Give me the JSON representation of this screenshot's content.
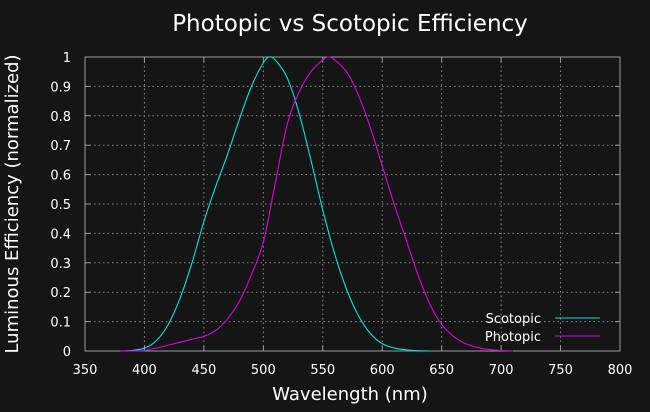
{
  "chart_data": {
    "type": "line",
    "title": "Photopic vs Scotopic Efficiency",
    "xlabel": "Wavelength (nm)",
    "ylabel": "Luminous Efficiency (normalized)",
    "xlim": [
      350,
      800
    ],
    "ylim": [
      0,
      1
    ],
    "xticks": [
      "350",
      "400",
      "450",
      "500",
      "550",
      "600",
      "650",
      "700",
      "750",
      "800"
    ],
    "yticks": [
      "0",
      "0.1",
      "0.2",
      "0.3",
      "0.4",
      "0.5",
      "0.6",
      "0.7",
      "0.8",
      "0.9",
      "1"
    ],
    "grid": true,
    "background": "#151515",
    "legend_position": "bottom-right",
    "series": [
      {
        "name": "Scotopic",
        "color": "#00e5e5",
        "x": [
          380,
          390,
          400,
          410,
          420,
          430,
          440,
          450,
          460,
          470,
          480,
          490,
          500,
          505,
          510,
          520,
          530,
          540,
          550,
          560,
          570,
          580,
          590,
          600,
          610,
          620,
          630,
          640
        ],
        "y": [
          0.0,
          0.002,
          0.01,
          0.035,
          0.09,
          0.18,
          0.3,
          0.44,
          0.56,
          0.67,
          0.79,
          0.9,
          0.98,
          1.0,
          0.99,
          0.93,
          0.81,
          0.65,
          0.48,
          0.33,
          0.21,
          0.12,
          0.06,
          0.025,
          0.01,
          0.004,
          0.001,
          0.0
        ]
      },
      {
        "name": "Photopic",
        "color": "#e000e0",
        "x": [
          380,
          390,
          400,
          410,
          420,
          430,
          440,
          450,
          460,
          470,
          480,
          490,
          500,
          510,
          520,
          530,
          540,
          550,
          555,
          560,
          570,
          580,
          590,
          600,
          610,
          620,
          630,
          640,
          650,
          660,
          670,
          680,
          690,
          700,
          710
        ],
        "y": [
          0.0,
          0.0,
          0.002,
          0.01,
          0.02,
          0.03,
          0.04,
          0.05,
          0.07,
          0.11,
          0.17,
          0.26,
          0.37,
          0.57,
          0.77,
          0.88,
          0.95,
          0.99,
          1.0,
          0.99,
          0.95,
          0.87,
          0.76,
          0.63,
          0.5,
          0.38,
          0.26,
          0.16,
          0.09,
          0.05,
          0.025,
          0.012,
          0.005,
          0.002,
          0.0
        ]
      }
    ]
  }
}
